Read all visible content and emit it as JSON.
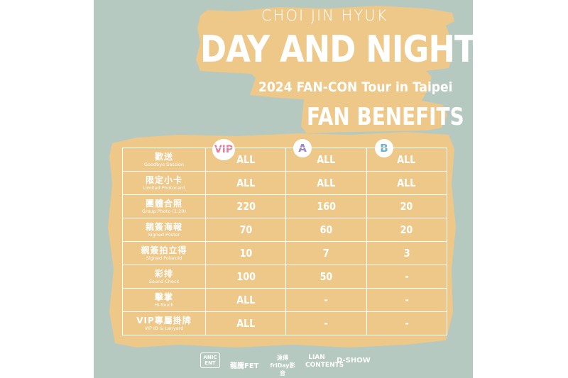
{
  "header": {
    "artist": "CHOI JIN HYUK",
    "title": "DAY AND NIGHT",
    "subtitle": "2024 FAN-CON Tour in Taipei",
    "section": "FAN BENEFITS"
  },
  "tiers": [
    {
      "label": "VIP",
      "color": "#e57c9a"
    },
    {
      "label": "A",
      "color": "#9a86c9"
    },
    {
      "label": "B",
      "color": "#6fb3c9"
    }
  ],
  "rows": [
    {
      "zh": "歡送",
      "en": "Goodbye Session",
      "vip": "ALL",
      "a": "ALL",
      "b": "ALL"
    },
    {
      "zh": "限定小卡",
      "en": "Limited Photocard",
      "vip": "ALL",
      "a": "ALL",
      "b": "ALL"
    },
    {
      "zh": "團體合照",
      "en": "Group Photo (1:20)",
      "vip": "220",
      "a": "160",
      "b": "20"
    },
    {
      "zh": "親簽海報",
      "en": "Signed Poster",
      "vip": "70",
      "a": "60",
      "b": "20"
    },
    {
      "zh": "親簽拍立得",
      "en": "Signed Polaroid",
      "vip": "10",
      "a": "7",
      "b": "3"
    },
    {
      "zh": "彩排",
      "en": "Sound Check",
      "vip": "100",
      "a": "50",
      "b": "-"
    },
    {
      "zh": "擊掌",
      "en": "Hi-Touch",
      "vip": "ALL",
      "a": "-",
      "b": "-"
    },
    {
      "zh": "VIP專屬掛牌",
      "en": "VIP ID & Lanyard",
      "vip": "ALL",
      "a": "-",
      "b": "-"
    }
  ],
  "logos": [
    "ANIC ENT",
    "龍騰FET",
    "遠傳 friDay影音",
    "LIAN CONTENTS",
    "D-SHOW"
  ],
  "colors": {
    "background": "#b5c9c0",
    "accent": "#edc889"
  }
}
